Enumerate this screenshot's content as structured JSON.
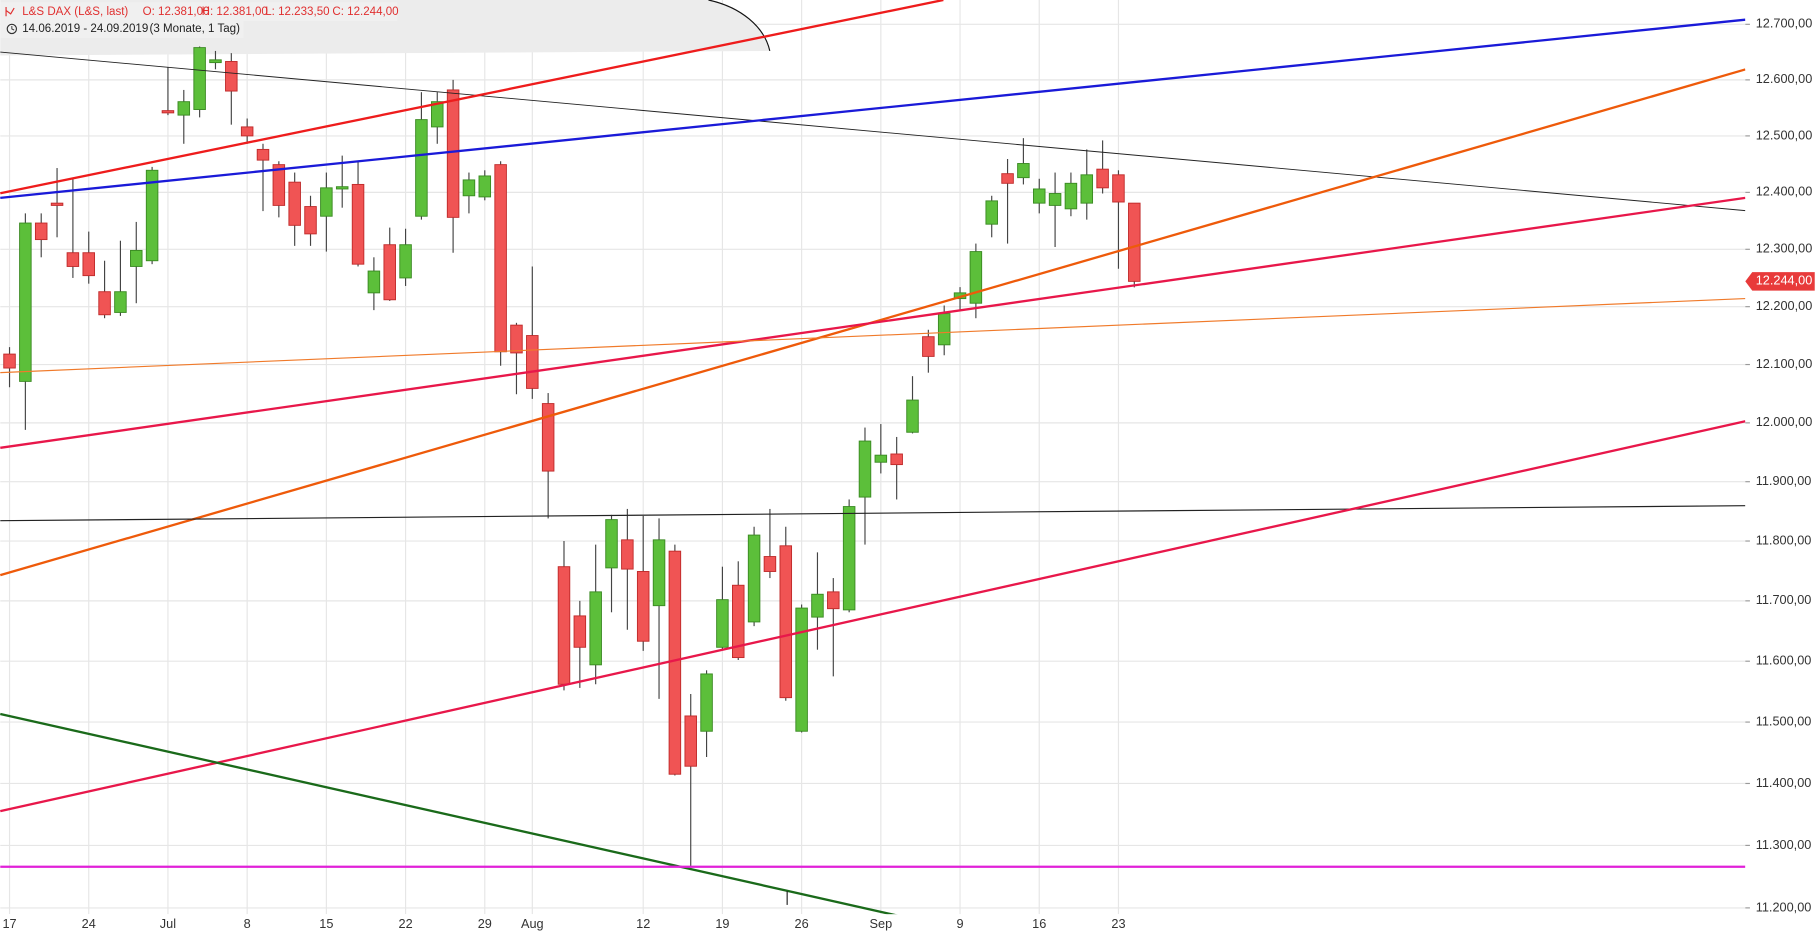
{
  "header": {
    "title": "L&S DAX (L&S, last)",
    "ohlc": [
      "O: 12.381,00",
      "H: 12.381,00",
      "L: 12.233,50",
      "C: 12.244,00"
    ],
    "range": "14.06.2019 - 24.09.2019",
    "period": "(3 Monate, 1 Tag)"
  },
  "chart_data": {
    "type": "candlestick",
    "categories": [
      "17",
      null,
      null,
      null,
      null,
      "24",
      null,
      null,
      null,
      null,
      "Jul",
      null,
      null,
      null,
      null,
      "8",
      null,
      null,
      null,
      null,
      "15",
      null,
      null,
      null,
      null,
      "22",
      null,
      null,
      null,
      null,
      "29",
      null,
      null,
      "Aug",
      null,
      null,
      null,
      null,
      null,
      null,
      "12",
      null,
      null,
      null,
      null,
      "19",
      null,
      null,
      null,
      null,
      "26",
      null,
      null,
      null,
      null,
      "Sep",
      null,
      null,
      null,
      null,
      "9",
      null,
      null,
      null,
      null,
      "16",
      null,
      null,
      null,
      null,
      "23",
      null
    ],
    "open": [
      12118,
      12071,
      12346,
      12381,
      12294,
      12294,
      12226,
      12190,
      12270,
      12280,
      12545,
      12537,
      12547,
      12631,
      12633,
      12516,
      12476,
      12449,
      12418,
      12375,
      12358,
      12406,
      12414,
      12224,
      12308,
      12250,
      12358,
      12516,
      12582,
      12394,
      12392,
      12449,
      12168,
      12150,
      12033,
      11757,
      11675,
      11594,
      11755,
      11802,
      11749,
      11692,
      11783,
      11510,
      11485,
      11623,
      11726,
      11665,
      11774,
      11792,
      11485,
      11673,
      11715,
      11685,
      11874,
      11933,
      11947,
      11984,
      12148,
      12134,
      12214,
      12206,
      12344,
      12433,
      12426,
      12381,
      12377,
      12371,
      12381,
      12441,
      12431,
      12381
    ],
    "high": [
      12130,
      12363,
      12363,
      12443,
      12424,
      12331,
      12280,
      12315,
      12348,
      12445,
      12623,
      12582,
      12660,
      12652,
      12648,
      12531,
      12486,
      12455,
      12435,
      12394,
      12435,
      12465,
      12455,
      12286,
      12338,
      12336,
      12578,
      12578,
      12600,
      12435,
      12439,
      12455,
      12172,
      12270,
      12051,
      11800,
      11700,
      11794,
      11844,
      11854,
      11842,
      11838,
      11794,
      11546,
      11585,
      11757,
      11766,
      11824,
      11854,
      11824,
      11694,
      11781,
      11738,
      11870,
      11992,
      11998,
      11976,
      12080,
      12160,
      12202,
      12234,
      12310,
      12394,
      12459,
      12496,
      12424,
      12435,
      12435,
      12476,
      12492,
      12439,
      12381
    ],
    "low": [
      12061,
      11988,
      12286,
      12321,
      12250,
      12240,
      12180,
      12184,
      12206,
      12274,
      12537,
      12486,
      12533,
      12619,
      12520,
      12486,
      12367,
      12356,
      12306,
      12306,
      12296,
      12373,
      12270,
      12194,
      12210,
      12236,
      12352,
      12486,
      12294,
      12363,
      12386,
      12098,
      12049,
      12041,
      11838,
      11552,
      11556,
      11562,
      11681,
      11652,
      11617,
      11538,
      11413,
      11265,
      11443,
      11619,
      11602,
      11658,
      11738,
      11535,
      11483,
      11619,
      11575,
      11681,
      11794,
      11914,
      11870,
      11982,
      12086,
      12116,
      12194,
      12180,
      12321,
      12310,
      12414,
      12363,
      12304,
      12358,
      12352,
      12398,
      12266,
      12233.5
    ],
    "close": [
      12094,
      12346,
      12317,
      12377,
      12270,
      12254,
      12186,
      12226,
      12298,
      12439,
      12541,
      12561,
      12658,
      12636,
      12580,
      12500,
      12457,
      12377,
      12342,
      12327,
      12408,
      12410,
      12274,
      12262,
      12212,
      12308,
      12529,
      12561,
      12356,
      12422,
      12429,
      12122,
      12120,
      12059,
      11918,
      11562,
      11623,
      11715,
      11836,
      11753,
      11633,
      11802,
      11415,
      11428,
      11579,
      11702,
      11606,
      11810,
      11749,
      11540,
      11688,
      11711,
      11687,
      11858,
      11969,
      11945,
      11929,
      12039,
      12114,
      12188,
      12224,
      12296,
      12385,
      12416,
      12451,
      12406,
      12398,
      12416,
      12431,
      12408,
      12383,
      12244
    ],
    "up_color": "#5cbf3a",
    "down_color": "#f05454",
    "ylim": [
      11190,
      12744
    ],
    "log_scale": true,
    "grid": true,
    "yticks": [
      {
        "value": 12700,
        "label": "12.700,00"
      },
      {
        "value": 12600,
        "label": "12.600,00"
      },
      {
        "value": 12500,
        "label": "12.500,00"
      },
      {
        "value": 12400,
        "label": "12.400,00"
      },
      {
        "value": 12300,
        "label": "12.300,00"
      },
      {
        "value": 12200,
        "label": "12.200,00"
      },
      {
        "value": 12100,
        "label": "12.100,00"
      },
      {
        "value": 12000,
        "label": "12.000,00"
      },
      {
        "value": 11900,
        "label": "11.900,00"
      },
      {
        "value": 11800,
        "label": "11.800,00"
      },
      {
        "value": 11700,
        "label": "11.700,00"
      },
      {
        "value": 11600,
        "label": "11.600,00"
      },
      {
        "value": 11500,
        "label": "11.500,00"
      },
      {
        "value": 11400,
        "label": "11.400,00"
      },
      {
        "value": 11300,
        "label": "11.300,00"
      },
      {
        "value": 11200,
        "label": "11.200,00"
      }
    ],
    "price_label": {
      "value": 12244,
      "label": "12.244,00"
    }
  }
}
